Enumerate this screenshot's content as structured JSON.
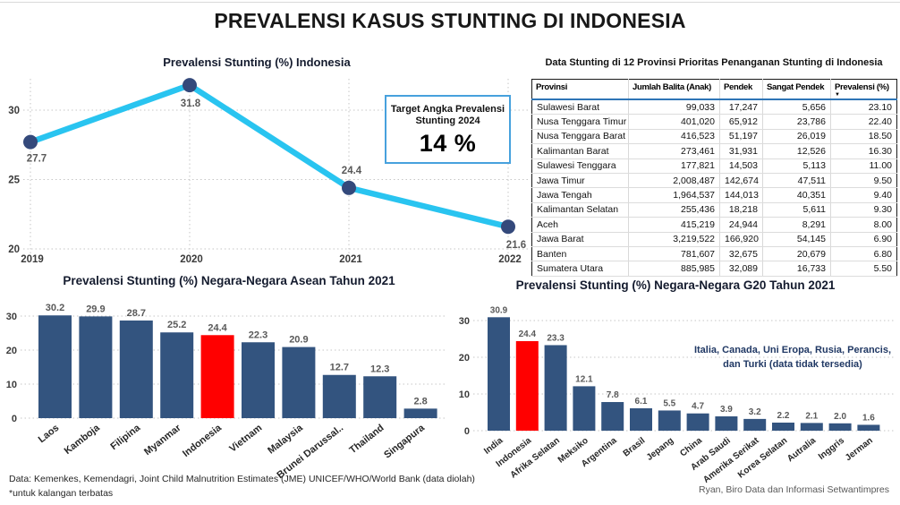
{
  "page": {
    "title": "PREVALENSI KASUS STUNTING DI INDONESIA",
    "footer_left_line1": "Data: Kemenkes, Kemendagri, Joint Child Malnutrition Estimates (JME) UNICEF/WHO/World Bank (data diolah)",
    "footer_left_line2": "*untuk kalangan terbatas",
    "footer_right": "Ryan, Biro Data dan Informasi Setwantimpres"
  },
  "colors": {
    "bar_navy": "#33547f",
    "highlight_red": "#ff0000",
    "line_cyan": "#29c4f0",
    "marker_navy": "#34497b",
    "value_label_gray": "#595959",
    "tick_label_gray": "#3b3b3b",
    "category_label_dark": "#262626",
    "gridline_gray": "#c6c6c6",
    "note_navy": "#203864",
    "target_border_blue": "#47a1dd",
    "table_header_rule_blue": "#2e75b6"
  },
  "target_box": {
    "line1": "Target Angka Prevalensi",
    "line2": "Stunting 2024",
    "value": "14 %"
  },
  "table": {
    "title": "Data Stunting di 12 Provinsi Prioritas Penanganan Stunting di Indonesia",
    "columns": [
      "Provinsi",
      "Jumlah Balita (Anak)",
      "Pendek",
      "Sangat Pendek",
      "Prevalensi (%)"
    ],
    "sort_column": "Prevalensi (%)",
    "sort_indicator": "▼",
    "rows": [
      [
        "Sulawesi Barat",
        "99,033",
        "17,247",
        "5,656",
        "23.10"
      ],
      [
        "Nusa Tenggara Timur",
        "401,020",
        "65,912",
        "23,786",
        "22.40"
      ],
      [
        "Nusa Tenggara Barat",
        "416,523",
        "51,197",
        "26,019",
        "18.50"
      ],
      [
        "Kalimantan Barat",
        "273,461",
        "31,931",
        "12,526",
        "16.30"
      ],
      [
        "Sulawesi Tenggara",
        "177,821",
        "14,503",
        "5,113",
        "11.00"
      ],
      [
        "Jawa Timur",
        "2,008,487",
        "142,674",
        "47,511",
        "9.50"
      ],
      [
        "Jawa Tengah",
        "1,964,537",
        "144,013",
        "40,351",
        "9.40"
      ],
      [
        "Kalimantan Selatan",
        "255,436",
        "18,218",
        "5,611",
        "9.30"
      ],
      [
        "Aceh",
        "415,219",
        "24,944",
        "8,291",
        "8.00"
      ],
      [
        "Jawa Barat",
        "3,219,522",
        "166,920",
        "54,145",
        "6.90"
      ],
      [
        "Banten",
        "781,607",
        "32,675",
        "20,679",
        "6.80"
      ],
      [
        "Sumatera Utara",
        "885,985",
        "32,089",
        "16,733",
        "5.50"
      ]
    ]
  },
  "chart_data": [
    {
      "type": "line",
      "title": "Prevalensi Stunting (%) Indonesia",
      "x": [
        "2019",
        "2020",
        "2021",
        "2022"
      ],
      "values": [
        27.7,
        31.8,
        24.4,
        21.6
      ],
      "yticks": [
        20,
        25,
        30
      ],
      "ylim": [
        20,
        33
      ],
      "grid": "dotted",
      "legend": "none"
    },
    {
      "type": "bar",
      "title": "Prevalensi Stunting (%) Negara-Negara Asean Tahun 2021",
      "categories": [
        "Laos",
        "Kamboja",
        "Filipina",
        "Myanmar",
        "Indonesia",
        "Vietnam",
        "Malaysia",
        "Brunei Darussal..",
        "Thailand",
        "Singapura"
      ],
      "values": [
        30.2,
        29.9,
        28.7,
        25.2,
        24.4,
        22.3,
        20.9,
        12.7,
        12.3,
        2.8
      ],
      "highlight_category": "Indonesia",
      "yticks": [
        0,
        10,
        20,
        30
      ],
      "ylim": [
        0,
        33
      ],
      "grid": "dotted",
      "legend": "none"
    },
    {
      "type": "bar",
      "title": "Prevalensi Stunting (%) Negara-Negara G20 Tahun 2021",
      "categories": [
        "India",
        "Indonesia",
        "Afrika Selatan",
        "Meksiko",
        "Argentina",
        "Brasil",
        "Jepang",
        "China",
        "Arab Saudi",
        "Amerika Serikat",
        "Korea Selatan",
        "Autralia",
        "Inggris",
        "Jerman"
      ],
      "values": [
        30.9,
        24.4,
        23.3,
        12.1,
        7.8,
        6.1,
        5.5,
        4.7,
        3.9,
        3.2,
        2.2,
        2.1,
        2.0,
        1.6
      ],
      "highlight_category": "Indonesia",
      "yticks": [
        0,
        10,
        20,
        30
      ],
      "ylim": [
        0,
        33
      ],
      "grid": "dotted",
      "legend": "none",
      "note_line1": "Italia, Canada, Uni Eropa, Rusia, Perancis,",
      "note_line2": "dan Turki (data tidak tersedia)"
    }
  ]
}
